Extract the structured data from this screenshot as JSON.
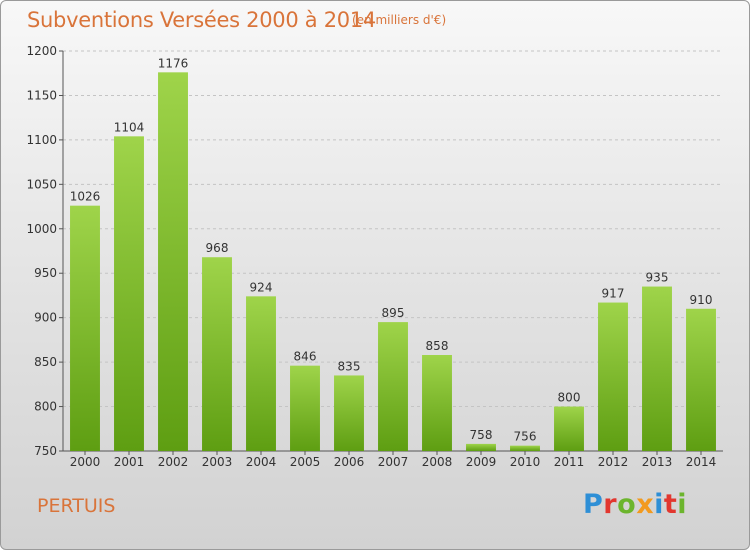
{
  "header": {
    "title": "Subventions Versées 2000 à 2014",
    "subtitle": "(en milliers d'€)"
  },
  "footer": {
    "place": "PERTUIS",
    "logo_text": "Proxiti"
  },
  "colors": {
    "title": "#d9743a",
    "bar_top": "#9fd44a",
    "bar_bottom": "#5e9e12",
    "logo": [
      "#2e8fd6",
      "#e2372f",
      "#6cb52d",
      "#f29a1f",
      "#2e8fd6",
      "#e2372f",
      "#6cb52d"
    ]
  },
  "chart_data": {
    "type": "bar",
    "title": "Subventions Versées 2000 à 2014",
    "subtitle": "(en milliers d'€)",
    "categories": [
      "2000",
      "2001",
      "2002",
      "2003",
      "2004",
      "2005",
      "2006",
      "2007",
      "2008",
      "2009",
      "2010",
      "2011",
      "2012",
      "2013",
      "2014"
    ],
    "values": [
      1026,
      1104,
      1176,
      968,
      924,
      846,
      835,
      895,
      858,
      758,
      756,
      800,
      917,
      935,
      910
    ],
    "ylim": [
      750,
      1200
    ],
    "yticks": [
      750,
      800,
      850,
      900,
      950,
      1000,
      1050,
      1100,
      1150,
      1200
    ],
    "xlabel": "",
    "ylabel": "",
    "grid": true,
    "legend": "none"
  }
}
